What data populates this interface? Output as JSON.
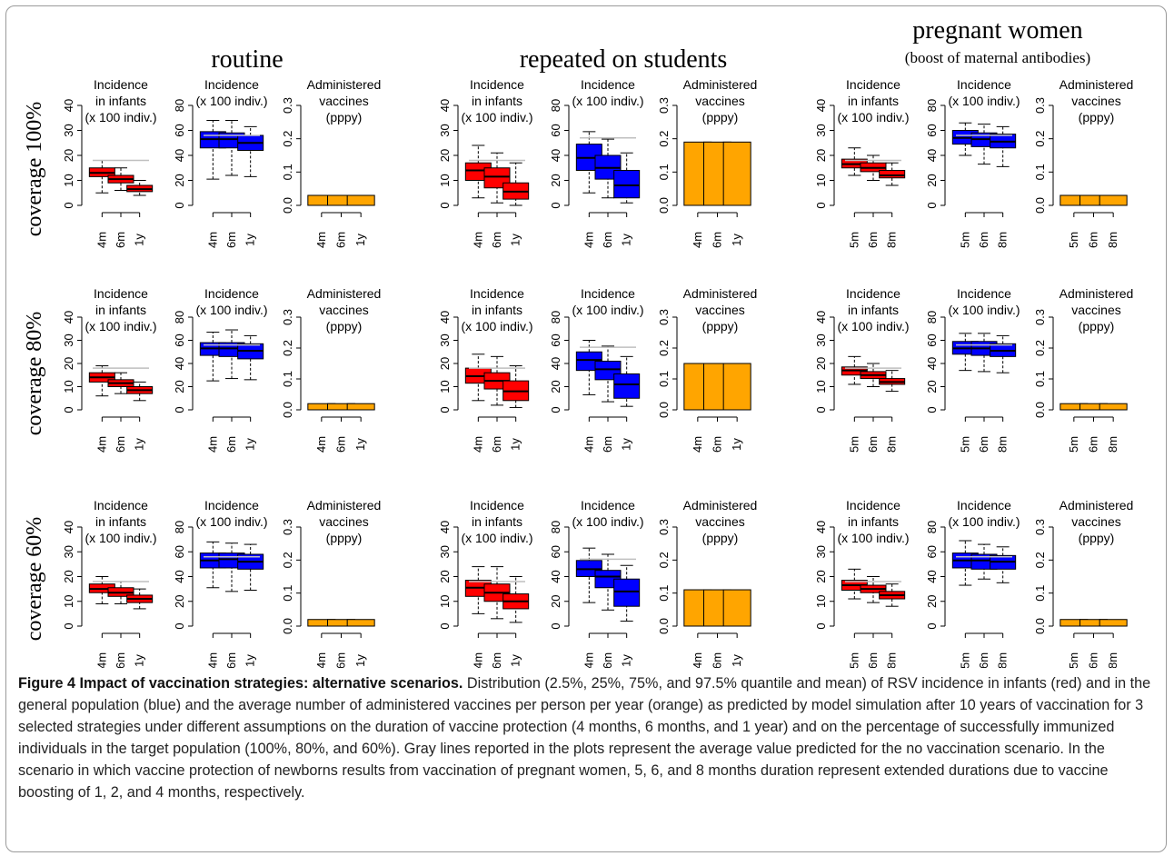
{
  "figure": {
    "scenario_titles": [
      {
        "title": "routine",
        "subtitle": ""
      },
      {
        "title": "repeated on students",
        "subtitle": ""
      },
      {
        "title": "pregnant women",
        "subtitle": "(boost of maternal antibodies)"
      }
    ],
    "row_labels": [
      "coverage 100%",
      "coverage 80%",
      "coverage 60%"
    ],
    "panel_titles": {
      "infants": [
        "Incidence",
        "in infants",
        "(x 100 indiv.)"
      ],
      "population": [
        "Incidence",
        "(x 100 indiv.)"
      ],
      "vaccines": [
        "Administered",
        "vaccines",
        "(pppy)"
      ]
    },
    "colors": {
      "infants": "#ff0000",
      "population": "#0000ff",
      "vaccines": "#ffa500",
      "reference_line": "#bfbfbf",
      "axis": "#000000"
    }
  },
  "chart_data": {
    "type": "boxplot",
    "axes": {
      "infants": {
        "ylim": [
          0,
          40
        ],
        "ticks": [
          0,
          10,
          20,
          30,
          40
        ]
      },
      "population": {
        "ylim": [
          0,
          80
        ],
        "ticks": [
          0,
          20,
          40,
          60,
          80
        ]
      },
      "vaccines": {
        "ylim": [
          0,
          0.3
        ],
        "ticks": [
          "0.0",
          "0.1",
          "0.2",
          "0.3"
        ]
      }
    },
    "scenarios": [
      {
        "name": "routine",
        "categories": [
          "4m",
          "6m",
          "1y"
        ],
        "reference": {
          "infants": 18,
          "population": 56
        },
        "rows": [
          {
            "coverage": "100%",
            "infants": [
              [
                5,
                11.5,
                13,
                15,
                18
              ],
              [
                6,
                9,
                10.5,
                12,
                15
              ],
              [
                4,
                5.5,
                6.5,
                8,
                10
              ]
            ],
            "population": [
              [
                21,
                46,
                53,
                59,
                68
              ],
              [
                24,
                46,
                53,
                58,
                68
              ],
              [
                23,
                44,
                50,
                56,
                63
              ]
            ],
            "vaccines": [
              0.03,
              0.03,
              0.03
            ]
          },
          {
            "coverage": "80%",
            "infants": [
              [
                6,
                12,
                14,
                16,
                19
              ],
              [
                7,
                10,
                11.5,
                13,
                16
              ],
              [
                4,
                7,
                8.5,
                10,
                12
              ]
            ],
            "population": [
              [
                25,
                47,
                53,
                58,
                67
              ],
              [
                27,
                46,
                53,
                58,
                69
              ],
              [
                26,
                44,
                51,
                57,
                64
              ]
            ],
            "vaccines": [
              0.02,
              0.02,
              0.02
            ]
          },
          {
            "coverage": "60%",
            "infants": [
              [
                9,
                13.5,
                15,
                17,
                20
              ],
              [
                9,
                12,
                13.5,
                15.5,
                18
              ],
              [
                7,
                9.5,
                11,
                12.5,
                15
              ]
            ],
            "population": [
              [
                31,
                47,
                53,
                59,
                68
              ],
              [
                28,
                47,
                54,
                59,
                67
              ],
              [
                29,
                46,
                52,
                58,
                66
              ]
            ],
            "vaccines": [
              0.02,
              0.02,
              0.02
            ]
          }
        ]
      },
      {
        "name": "repeated on students",
        "categories": [
          "4m",
          "6m",
          "1y"
        ],
        "reference": {
          "infants": 18,
          "population": 54
        },
        "rows": [
          {
            "coverage": "100%",
            "infants": [
              [
                3,
                10,
                14,
                17,
                24
              ],
              [
                1,
                7,
                11.5,
                15,
                21
              ],
              [
                0,
                2.5,
                5.5,
                9,
                17
              ]
            ],
            "population": [
              [
                10,
                28,
                38,
                49,
                59
              ],
              [
                6,
                21,
                30,
                40,
                53
              ],
              [
                2,
                6,
                16,
                28,
                42
              ]
            ],
            "vaccines": [
              0.19,
              0.19,
              0.19
            ]
          },
          {
            "coverage": "80%",
            "infants": [
              [
                4,
                11.5,
                14.5,
                18,
                24
              ],
              [
                2,
                9,
                12.5,
                16,
                23
              ],
              [
                1,
                4,
                8,
                12.5,
                19
              ]
            ],
            "population": [
              [
                13,
                34,
                43,
                50,
                60
              ],
              [
                7,
                26,
                35,
                42,
                55
              ],
              [
                3,
                10,
                22,
                31,
                46
              ]
            ],
            "vaccines": [
              0.15,
              0.15,
              0.15
            ]
          },
          {
            "coverage": "60%",
            "infants": [
              [
                5,
                12,
                15.5,
                18.5,
                24
              ],
              [
                3,
                10,
                13.5,
                17,
                24
              ],
              [
                1.5,
                7,
                10,
                13,
                20
              ]
            ],
            "population": [
              [
                19,
                40,
                46,
                53,
                63
              ],
              [
                13,
                31,
                40,
                45,
                58
              ],
              [
                4,
                16,
                28,
                38,
                49
              ]
            ],
            "vaccines": [
              0.11,
              0.11,
              0.11
            ]
          }
        ]
      },
      {
        "name": "pregnant women",
        "categories": [
          "5m",
          "6m",
          "8m"
        ],
        "reference": {
          "infants": 18,
          "population": 56
        },
        "rows": [
          {
            "coverage": "100%",
            "infants": [
              [
                12,
                15,
                16.5,
                18.5,
                23
              ],
              [
                10,
                13.5,
                15,
                17,
                20
              ],
              [
                8,
                11,
                12,
                14,
                17
              ]
            ],
            "population": [
              [
                40,
                49,
                54,
                60,
                66
              ],
              [
                33,
                47,
                53,
                58,
                65
              ],
              [
                31,
                46,
                51,
                57,
                63
              ]
            ],
            "vaccines": [
              0.03,
              0.03,
              0.03
            ]
          },
          {
            "coverage": "80%",
            "infants": [
              [
                11,
                15,
                17,
                18.5,
                23
              ],
              [
                10,
                13.5,
                15,
                16.5,
                20
              ],
              [
                8,
                11,
                12,
                13.5,
                17
              ]
            ],
            "population": [
              [
                34,
                48,
                53,
                59,
                66
              ],
              [
                33,
                47,
                53,
                59,
                66
              ],
              [
                32,
                46,
                51,
                57,
                64
              ]
            ],
            "vaccines": [
              0.02,
              0.02,
              0.02
            ]
          },
          {
            "coverage": "60%",
            "infants": [
              [
                11,
                14.5,
                16.5,
                18.5,
                23
              ],
              [
                9.5,
                13.5,
                15,
                16.5,
                20
              ],
              [
                8,
                11,
                12.5,
                14,
                17
              ]
            ],
            "population": [
              [
                33,
                47,
                53,
                59,
                69
              ],
              [
                38,
                46,
                53,
                58,
                66
              ],
              [
                35,
                46,
                52,
                57,
                64
              ]
            ],
            "vaccines": [
              0.02,
              0.02,
              0.02
            ]
          }
        ]
      }
    ]
  },
  "caption": {
    "title": "Figure 4 Impact of vaccination strategies: alternative scenarios.",
    "text": " Distribution (2.5%, 25%, 75%, and 97.5% quantile and mean) of RSV incidence in infants (red) and in the general population (blue) and the average number of administered vaccines per person per year (orange) as predicted by model simulation after 10 years of vaccination for 3 selected strategies under different assumptions on the duration of vaccine protection (4 months, 6 months, and 1 year) and on the percentage of successfully immunized individuals in the target population (100%, 80%, and 60%). Gray lines reported in the plots represent the average value predicted for the no vaccination scenario. In the scenario in which vaccine protection of newborns results from vaccination of pregnant women, 5, 6, and 8 months duration represent extended durations due to vaccine boosting of 1, 2, and 4 months, respectively."
  }
}
